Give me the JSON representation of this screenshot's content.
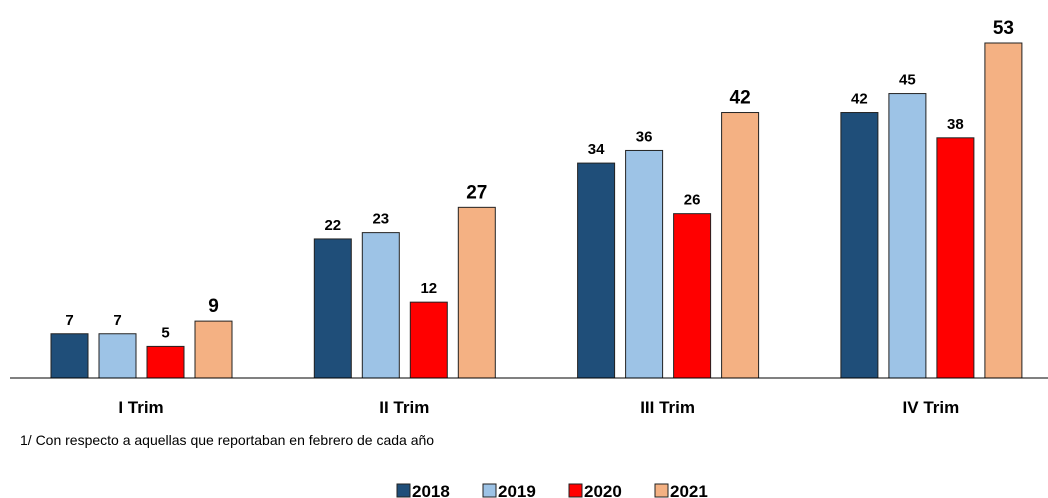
{
  "chart_data": {
    "type": "bar",
    "categories": [
      "I Trim",
      "II Trim",
      "III Trim",
      "IV Trim"
    ],
    "series": [
      {
        "name": "2018",
        "color": "#1f4e79",
        "values": [
          7,
          22,
          34,
          42
        ]
      },
      {
        "name": "2019",
        "color": "#9dc3e6",
        "values": [
          7,
          23,
          36,
          45
        ]
      },
      {
        "name": "2020",
        "color": "#ff0000",
        "values": [
          5,
          12,
          26,
          38
        ]
      },
      {
        "name": "2021",
        "color": "#f4b183",
        "values": [
          9,
          27,
          42,
          53
        ]
      }
    ],
    "note": "1/ Con respecto a aquellas que reportaban en febrero de cada año",
    "legend": "bottom"
  }
}
